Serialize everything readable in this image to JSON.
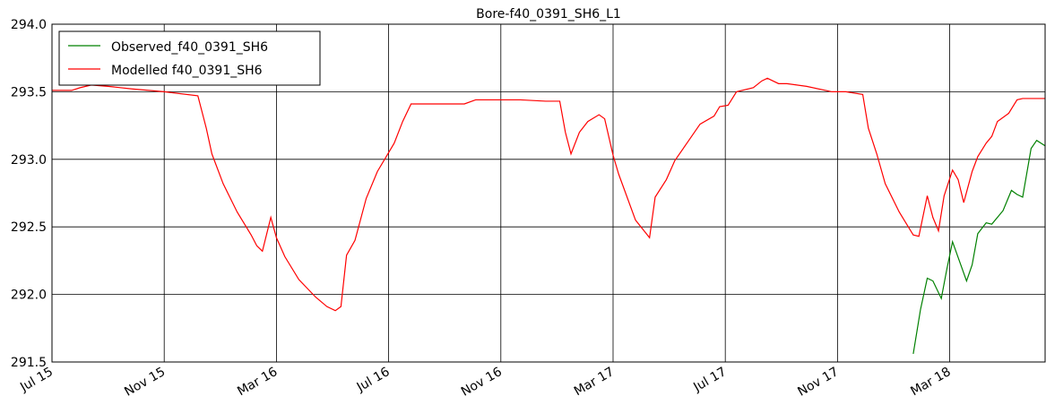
{
  "chart_data": {
    "type": "line",
    "title": "Bore-f40_0391_SH6_L1",
    "xlim": [
      0,
      35.4
    ],
    "xticks": [
      {
        "value": 0,
        "label": "Jul 15"
      },
      {
        "value": 4,
        "label": "Nov 15"
      },
      {
        "value": 8,
        "label": "Mar 16"
      },
      {
        "value": 12,
        "label": "Jul 16"
      },
      {
        "value": 16,
        "label": "Nov 16"
      },
      {
        "value": 20,
        "label": "Mar 17"
      },
      {
        "value": 24,
        "label": "Jul 17"
      },
      {
        "value": 28,
        "label": "Nov 17"
      },
      {
        "value": 32,
        "label": "Mar 18"
      }
    ],
    "ylim": [
      291.5,
      294.0
    ],
    "yticks": [
      291.5,
      {
        "value": 292.0,
        "label": "292.0"
      },
      292.5,
      {
        "value": 293.0,
        "label": "293.0"
      },
      293.5,
      {
        "value": 294.0,
        "label": "294.0"
      }
    ],
    "grid": true,
    "legend": "upper left",
    "series": [
      {
        "name": "Observed_f40_0391_SH6",
        "color": "#008000",
        "x": [
          30.7,
          30.96,
          31.2,
          31.4,
          31.7,
          31.9,
          32.1,
          32.6,
          32.8,
          33.0,
          33.3,
          33.5,
          33.9,
          34.2,
          34.4,
          34.6,
          34.9,
          35.1,
          35.4
        ],
        "values": [
          291.56,
          291.89,
          292.12,
          292.1,
          291.97,
          292.19,
          292.39,
          292.1,
          292.22,
          292.45,
          292.53,
          292.52,
          292.62,
          292.77,
          292.74,
          292.72,
          293.08,
          293.14,
          293.1
        ]
      },
      {
        "name": "Modelled f40_0391_SH6",
        "color": "#ff0000",
        "x": [
          0,
          0.7,
          1.0,
          1.4,
          2.0,
          2.9,
          4.0,
          5.2,
          5.5,
          5.7,
          6.1,
          6.6,
          7.1,
          7.3,
          7.5,
          7.8,
          8.0,
          8.3,
          8.8,
          9.4,
          9.8,
          10.1,
          10.3,
          10.5,
          10.8,
          11.2,
          11.6,
          12.0,
          12.2,
          12.5,
          12.8,
          13.1,
          14.7,
          15.1,
          16.2,
          16.7,
          17.6,
          18.1,
          18.3,
          18.5,
          18.8,
          19.1,
          19.5,
          19.7,
          20.0,
          20.2,
          20.8,
          21.3,
          21.5,
          21.9,
          22.2,
          22.7,
          23.1,
          23.6,
          23.8,
          24.1,
          24.4,
          25.0,
          25.3,
          25.5,
          25.9,
          26.2,
          26.9,
          27.8,
          28.3,
          28.9,
          29.1,
          29.4,
          29.7,
          30.2,
          30.7,
          30.9,
          31.2,
          31.4,
          31.6,
          31.8,
          32.1,
          32.3,
          32.5,
          32.8,
          33.0,
          33.3,
          33.5,
          33.7,
          34.1,
          34.4,
          34.6,
          35.4
        ],
        "values": [
          293.51,
          293.51,
          293.53,
          293.55,
          293.54,
          293.52,
          293.5,
          293.47,
          293.23,
          293.04,
          292.82,
          292.61,
          292.44,
          292.36,
          292.32,
          292.57,
          292.42,
          292.28,
          292.11,
          291.98,
          291.91,
          291.88,
          291.91,
          292.29,
          292.4,
          292.71,
          292.91,
          293.05,
          293.12,
          293.28,
          293.41,
          293.41,
          293.41,
          293.44,
          293.44,
          293.44,
          293.43,
          293.43,
          293.2,
          293.04,
          293.2,
          293.28,
          293.33,
          293.3,
          293.03,
          292.89,
          292.55,
          292.42,
          292.72,
          292.85,
          292.99,
          293.14,
          293.26,
          293.32,
          293.39,
          293.4,
          293.5,
          293.53,
          293.58,
          293.6,
          293.56,
          293.56,
          293.54,
          293.5,
          293.5,
          293.48,
          293.23,
          293.04,
          292.82,
          292.61,
          292.44,
          292.43,
          292.73,
          292.57,
          292.47,
          292.73,
          292.92,
          292.85,
          292.68,
          292.91,
          293.02,
          293.12,
          293.17,
          293.28,
          293.34,
          293.44,
          293.45,
          293.45
        ]
      }
    ]
  }
}
